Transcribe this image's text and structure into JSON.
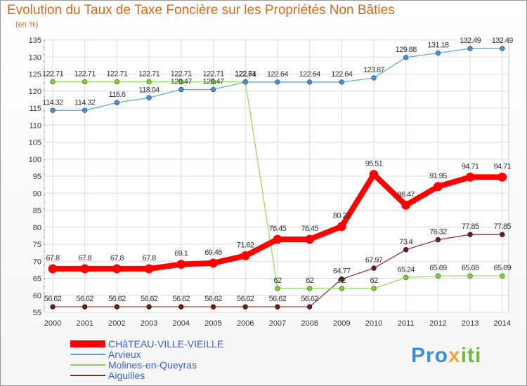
{
  "header": {
    "title": "Evolution du Taux de Taxe Foncière sur les Propriétés Non Bâties",
    "unit": "(en %)"
  },
  "logo": {
    "part1": "Pro",
    "part2": "x",
    "part3": "iti"
  },
  "chart_data": {
    "type": "line",
    "title": "Evolution du Taux de Taxe Foncière sur les Propriétés Non Bâties",
    "ylabel": "(en %)",
    "xlabel": "",
    "x": [
      "2000",
      "2001",
      "2002",
      "2003",
      "2004",
      "2005",
      "2006",
      "2007",
      "2008",
      "2009",
      "2010",
      "2011",
      "2012",
      "2013",
      "2014"
    ],
    "ylim": [
      55,
      135
    ],
    "yticks": [
      55,
      60,
      65,
      70,
      75,
      80,
      85,
      90,
      95,
      100,
      105,
      110,
      115,
      120,
      125,
      130,
      135
    ],
    "grid": true,
    "legend_position": "bottom-left",
    "series": [
      {
        "name": "CHâTEAU-VILLE-VIEILLE",
        "color": "#ff0000",
        "values": [
          67.8,
          67.8,
          67.8,
          67.8,
          69.1,
          69.46,
          71.62,
          76.45,
          76.45,
          80.22,
          95.51,
          86.47,
          91.95,
          94.71,
          94.71
        ],
        "labels": [
          "67.8",
          "67.8",
          "67.8",
          "67.8",
          "69.1",
          "69.46",
          "71.62",
          "76.45",
          "76.45",
          "80.22",
          "95.51",
          "86.47",
          "91.95",
          "94.71",
          "94.71"
        ]
      },
      {
        "name": "Arvieux",
        "color": "#5b9bd5",
        "values": [
          114.32,
          114.32,
          116.6,
          118.04,
          120.47,
          120.47,
          122.64,
          122.64,
          122.64,
          122.64,
          123.87,
          129.88,
          131.18,
          132.49,
          132.49
        ],
        "labels": [
          "114.32",
          "114.32",
          "116.6",
          "118.04",
          "120.47",
          "120.47",
          "122.64",
          "122.64",
          "122.64",
          "122.64",
          "123.87",
          "129.88",
          "131.18",
          "132.49",
          "132.49"
        ]
      },
      {
        "name": "Molines-en-Queyras",
        "color": "#8fd14f",
        "values": [
          122.71,
          122.71,
          122.71,
          122.71,
          122.71,
          122.71,
          122.71,
          62,
          62,
          62,
          62,
          65.24,
          65.69,
          65.69,
          65.69
        ],
        "labels": [
          "122.71",
          "122.71",
          "122.71",
          "122.71",
          "122.71",
          "122.71",
          "122.71",
          "62",
          "62",
          "62",
          "62",
          "65.24",
          "65.69",
          "65.69",
          "65.69"
        ]
      },
      {
        "name": "Aiguilles",
        "color": "#7b2a2a",
        "values": [
          56.62,
          56.62,
          56.62,
          56.62,
          56.62,
          56.62,
          56.62,
          56.62,
          56.62,
          64.77,
          67.97,
          73.4,
          76.32,
          77.85,
          77.85
        ],
        "labels": [
          "56.62",
          "56.62",
          "56.62",
          "56.62",
          "56.62",
          "56.62",
          "56.62",
          "56.62",
          "56.62",
          "64.77",
          "67.97",
          "73.4",
          "76.32",
          "77.85",
          "77.85"
        ]
      }
    ]
  }
}
